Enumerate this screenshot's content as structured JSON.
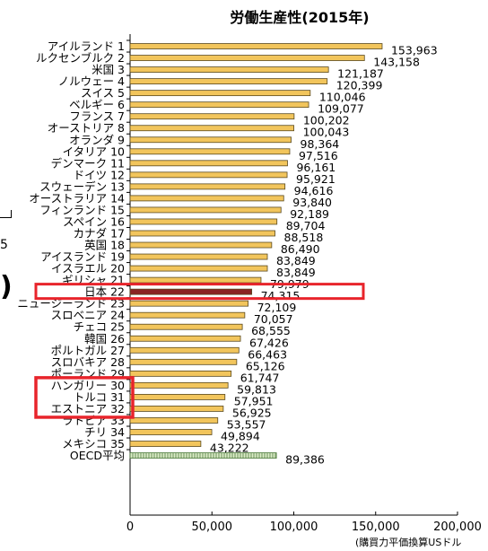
{
  "chart_data": {
    "type": "bar",
    "orientation": "horizontal",
    "title": "労働生産性(2015年)",
    "unit_note": "(購買力平価換算USドル",
    "xlim": [
      0,
      200000
    ],
    "xticks": [
      0,
      50000,
      100000,
      150000,
      200000
    ],
    "xtick_labels": [
      "0",
      "50,000",
      "100,000",
      "150,000",
      "200,000"
    ],
    "grid": false,
    "legend": "none",
    "categories": [
      "アイルランド 1",
      "ルクセンブルク 2",
      "米国 3",
      "ノルウェー 4",
      "スイス 5",
      "ベルギー 6",
      "フランス 7",
      "オーストリア 8",
      "オランダ 9",
      "イタリア 10",
      "デンマーク 11",
      "ドイツ 12",
      "スウェーデン 13",
      "オーストラリア 14",
      "フィンランド 15",
      "スペイン 16",
      "カナダ 17",
      "英国 18",
      "アイスランド 19",
      "イスラエル 20",
      "ギリシャ 21",
      "日本 22",
      "ニュージーランド 23",
      "スロベニア 24",
      "チェコ 25",
      "韓国 26",
      "ポルトガル 27",
      "スロバキア 28",
      "ポーランド 29",
      "ハンガリー 30",
      "トルコ 31",
      "エストニア 32",
      "ラトビア 33",
      "チリ 34",
      "メキシコ 35",
      "OECD平均"
    ],
    "values": [
      153963,
      143158,
      121187,
      120399,
      110046,
      109077,
      100202,
      100043,
      98364,
      97516,
      96161,
      95921,
      94616,
      93840,
      92189,
      89704,
      88518,
      86490,
      83849,
      83849,
      79979,
      74315,
      72109,
      70057,
      68555,
      67426,
      66463,
      65126,
      61747,
      59813,
      57951,
      56925,
      53557,
      49894,
      43222,
      89386
    ],
    "value_labels": [
      "153,963",
      "143,158",
      "121,187",
      "120,399",
      "110,046",
      "109,077",
      "100,202",
      "100,043",
      "98,364",
      "97,516",
      "96,161",
      "95,921",
      "94,616",
      "93,840",
      "92,189",
      "89,704",
      "88,518",
      "86,490",
      "83,849",
      "83,849",
      "79,979",
      "74,315",
      "72,109",
      "70,057",
      "68,555",
      "67,426",
      "66,463",
      "65,126",
      "61,747",
      "59,813",
      "57,951",
      "56,925",
      "53,557",
      "49,894",
      "43,222",
      "89,386"
    ],
    "colors": {
      "bar_fill": "#F2C55C",
      "bar_stroke": "#5a4a20",
      "highlight_bar_fill": "#8A2424",
      "oecd_fill": "#DCEBC8",
      "oecd_stroke": "#4C7A3A",
      "highlight_box": "#E8242B"
    },
    "highlighted_rows": [
      "日本 22"
    ],
    "boxed_groups": [
      [
        "ハンガリー 30",
        "トルコ 31",
        "エストニア 32"
      ]
    ]
  },
  "left_edge_fragments": [
    "5",
    ")"
  ]
}
